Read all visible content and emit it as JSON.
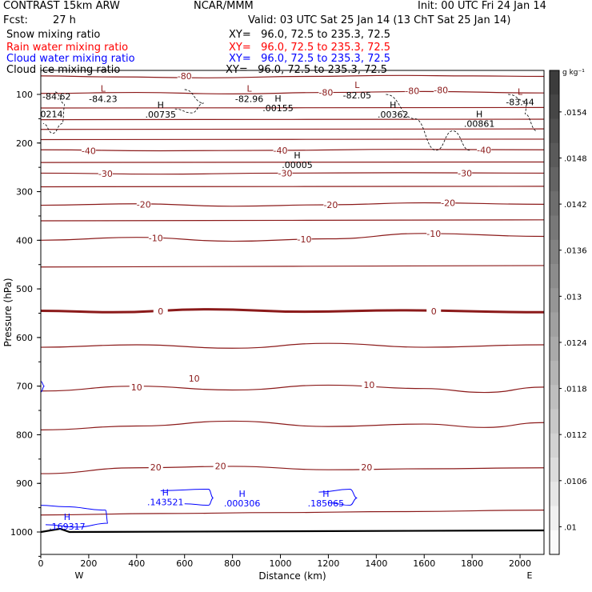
{
  "header": {
    "model": "CONTRAST 15km ARW",
    "center": "NCAR/MMM",
    "init": "Init: 00 UTC Fri 24 Jan 14",
    "fcst_label": "Fcst:",
    "fcst_value": "27 h",
    "valid": "Valid: 03 UTC Sat 25 Jan 14 (13 ChT Sat 25 Jan 14)"
  },
  "fields": [
    {
      "name": "Snow mixing ratio",
      "xy": "XY=   96.0, 72.5 to 235.3, 72.5",
      "color": "#000000"
    },
    {
      "name": "Rain water mixing ratio",
      "xy": "XY=   96.0, 72.5 to 235.3, 72.5",
      "color": "#ff0000"
    },
    {
      "name": "Cloud water mixing ratio",
      "xy": "XY=   96.0, 72.5 to 235.3, 72.5",
      "color": "#0000ff"
    },
    {
      "name": "Cloud ice mixing ratio",
      "xy": "XY=   96.0, 72.5 to 235.3, 72.5",
      "color": "#000000"
    }
  ],
  "chart_data": {
    "type": "contour",
    "xlabel": "Distance (km)",
    "ylabel": "Pressure (hPa)",
    "xlim": [
      0,
      2100
    ],
    "ylim": [
      1050,
      50
    ],
    "x_ticks": [
      0,
      200,
      400,
      600,
      800,
      1000,
      1200,
      1400,
      1600,
      1800,
      2000
    ],
    "y_ticks": [
      100,
      200,
      300,
      400,
      500,
      600,
      700,
      800,
      900,
      1000
    ],
    "x_end_labels": {
      "left": "W",
      "right": "E"
    },
    "temperature_contours": {
      "color": "#8b1a1a",
      "levels": [
        {
          "label": "-80",
          "p": [
            [
              0,
              62
            ],
            [
              300,
              64
            ],
            [
              700,
              66
            ],
            [
              1100,
              63
            ],
            [
              1500,
              61
            ],
            [
              1800,
              62
            ],
            [
              2100,
              63
            ]
          ]
        },
        {
          "label": "-80",
          "p": [
            [
              0,
              98
            ],
            [
              400,
              96
            ],
            [
              800,
              99
            ],
            [
              1200,
              96
            ],
            [
              1600,
              94
            ],
            [
              2100,
              97
            ]
          ]
        },
        {
          "label": "",
          "p": [
            [
              0,
              128
            ],
            [
              2100,
              127
            ]
          ]
        },
        {
          "label": "",
          "p": [
            [
              0,
              152
            ],
            [
              2100,
              151
            ]
          ]
        },
        {
          "label": "",
          "p": [
            [
              0,
              172
            ],
            [
              2100,
              171
            ]
          ]
        },
        {
          "label": "",
          "p": [
            [
              0,
              193
            ],
            [
              2100,
              192
            ]
          ]
        },
        {
          "label": "-40",
          "p": [
            [
              0,
              214
            ],
            [
              500,
              216
            ],
            [
              1000,
              215
            ],
            [
              1500,
              213
            ],
            [
              2100,
              214
            ]
          ]
        },
        {
          "label": "",
          "p": [
            [
              0,
              240
            ],
            [
              2100,
              239
            ]
          ]
        },
        {
          "label": "-30",
          "p": [
            [
              0,
              262
            ],
            [
              500,
              264
            ],
            [
              1000,
              262
            ],
            [
              1500,
              261
            ],
            [
              2100,
              262
            ]
          ]
        },
        {
          "label": "",
          "p": [
            [
              0,
              290
            ],
            [
              2100,
              289
            ]
          ]
        },
        {
          "label": "-20",
          "p": [
            [
              0,
              328
            ],
            [
              400,
              325
            ],
            [
              800,
              330
            ],
            [
              1200,
              327
            ],
            [
              1600,
              323
            ],
            [
              2100,
              326
            ]
          ]
        },
        {
          "label": "",
          "p": [
            [
              0,
              360
            ],
            [
              2100,
              358
            ]
          ]
        },
        {
          "label": "-10",
          "p": [
            [
              0,
              400
            ],
            [
              400,
              394
            ],
            [
              800,
              402
            ],
            [
              1200,
              397
            ],
            [
              1600,
              386
            ],
            [
              2100,
              392
            ]
          ]
        },
        {
          "label": "",
          "p": [
            [
              0,
              455
            ],
            [
              2100,
              452
            ]
          ]
        },
        {
          "label": "0",
          "p": [
            [
              0,
              545
            ],
            [
              300,
              548
            ],
            [
              700,
              542
            ],
            [
              1100,
              547
            ],
            [
              1500,
              544
            ],
            [
              2100,
              548
            ]
          ],
          "bold": true
        },
        {
          "label": "",
          "p": [
            [
              0,
              620
            ],
            [
              400,
              615
            ],
            [
              800,
              622
            ],
            [
              1200,
              612
            ],
            [
              1600,
              620
            ],
            [
              2100,
              615
            ]
          ]
        },
        {
          "label": "10",
          "p": [
            [
              0,
              710
            ],
            [
              400,
              700
            ],
            [
              800,
              708
            ],
            [
              1200,
              698
            ],
            [
              1600,
              705
            ],
            [
              1850,
              713
            ],
            [
              2100,
              702
            ]
          ]
        },
        {
          "label": "",
          "p": [
            [
              0,
              790
            ],
            [
              400,
              782
            ],
            [
              800,
              772
            ],
            [
              1200,
              783
            ],
            [
              1600,
              778
            ],
            [
              1850,
              785
            ],
            [
              2100,
              775
            ]
          ]
        },
        {
          "label": "20",
          "p": [
            [
              0,
              880
            ],
            [
              400,
              868
            ],
            [
              800,
              865
            ],
            [
              1200,
              872
            ],
            [
              1600,
              870
            ],
            [
              2100,
              868
            ]
          ]
        },
        {
          "label": "",
          "p": [
            [
              0,
              965
            ],
            [
              500,
              962
            ],
            [
              1000,
              960
            ],
            [
              1500,
              958
            ],
            [
              2100,
              955
            ]
          ]
        }
      ],
      "labels": [
        {
          "text": "-80",
          "x": 600,
          "p": 62
        },
        {
          "text": "-80",
          "x": 1190,
          "p": 96
        },
        {
          "text": "-80",
          "x": 1550,
          "p": 93
        },
        {
          "text": "-80",
          "x": 1670,
          "p": 91
        },
        {
          "text": "-40",
          "x": 200,
          "p": 216
        },
        {
          "text": "-40",
          "x": 1000,
          "p": 215
        },
        {
          "text": "-40",
          "x": 1850,
          "p": 214
        },
        {
          "text": "-30",
          "x": 270,
          "p": 263
        },
        {
          "text": "-30",
          "x": 1020,
          "p": 262
        },
        {
          "text": "-30",
          "x": 1770,
          "p": 262
        },
        {
          "text": "-20",
          "x": 430,
          "p": 326
        },
        {
          "text": "-20",
          "x": 1210,
          "p": 327
        },
        {
          "text": "-20",
          "x": 1700,
          "p": 323
        },
        {
          "text": "-10",
          "x": 480,
          "p": 395
        },
        {
          "text": "-10",
          "x": 1100,
          "p": 398
        },
        {
          "text": "-10",
          "x": 1640,
          "p": 386
        },
        {
          "text": "0",
          "x": 500,
          "p": 546
        },
        {
          "text": "0",
          "x": 1640,
          "p": 546
        },
        {
          "text": "10",
          "x": 400,
          "p": 702
        },
        {
          "text": "10",
          "x": 640,
          "p": 684
        },
        {
          "text": "10",
          "x": 1370,
          "p": 697
        },
        {
          "text": "20",
          "x": 480,
          "p": 867
        },
        {
          "text": "20",
          "x": 750,
          "p": 864
        },
        {
          "text": "20",
          "x": 1360,
          "p": 867
        }
      ],
      "extrema": [
        {
          "t": "L",
          "x": 260,
          "p": 88,
          "v": "-84.23"
        },
        {
          "t": "L",
          "x": 870,
          "p": 88,
          "v": "-82.96"
        },
        {
          "t": "L",
          "x": 1320,
          "p": 80,
          "v": "-82.05"
        },
        {
          "t": "L",
          "x": 2000,
          "p": 94,
          "v": "-83.44"
        }
      ],
      "left_edge_value": {
        "v": "-84.62",
        "p": 104
      }
    },
    "snow_max": [
      {
        "t": "H",
        "x": 500,
        "p": 128,
        "v": ".00735"
      },
      {
        "t": "H",
        "x": 990,
        "p": 115,
        "v": ".00155"
      },
      {
        "t": "H",
        "x": 1470,
        "p": 128,
        "v": ".00362"
      },
      {
        "t": "H",
        "x": 1830,
        "p": 147,
        "v": ".00861"
      },
      {
        "t": "H",
        "x": 1070,
        "p": 232,
        "v": ".00005"
      }
    ],
    "cloud_ice_edge_value": {
      "v": ".0214",
      "p": 140
    },
    "cloud_water_max": [
      {
        "t": "H",
        "x": 110,
        "p": 975,
        "v": ".169317"
      },
      {
        "t": "H",
        "x": 520,
        "p": 925,
        "v": ".143521"
      },
      {
        "t": "H",
        "x": 840,
        "p": 928,
        "v": ".000306"
      },
      {
        "t": "H",
        "x": 1190,
        "p": 928,
        "v": ".185065"
      }
    ],
    "colorbar": {
      "unit": "g kg⁻¹",
      "ticks": [
        ".0154",
        ".0148",
        ".0142",
        ".0136",
        ".013",
        ".0124",
        ".0118",
        ".0112",
        ".0106",
        ".01"
      ]
    }
  }
}
